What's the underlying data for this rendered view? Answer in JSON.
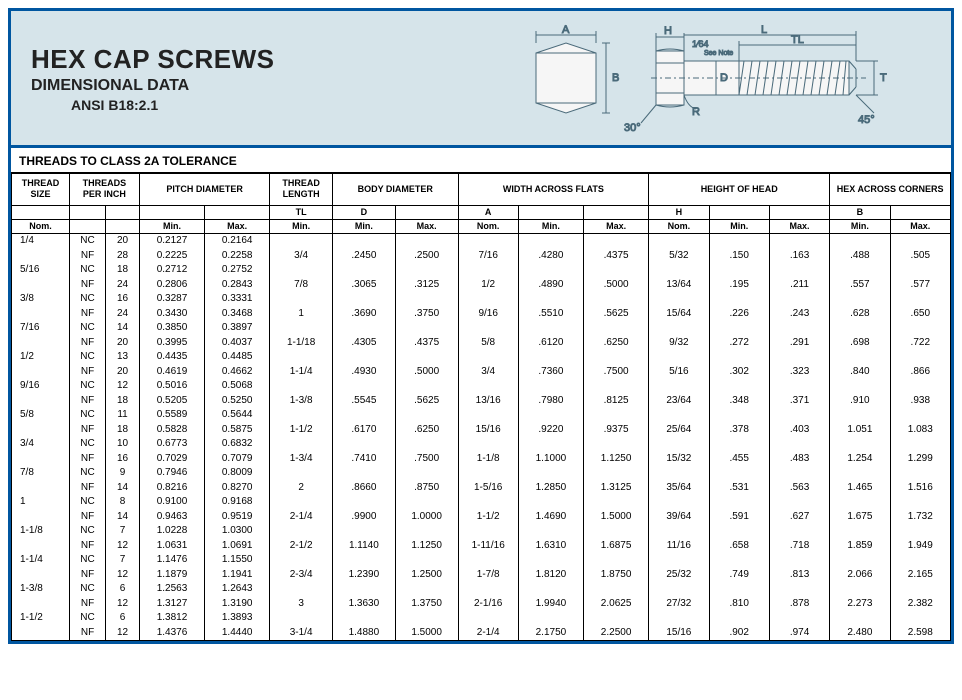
{
  "header": {
    "title1": "HEX CAP SCREWS",
    "title2": "DIMENSIONAL DATA",
    "title3": "ANSI B18:2.1"
  },
  "subtitle": "THREADS TO CLASS 2A TOLERANCE",
  "diagram": {
    "labels": {
      "A": "A",
      "B": "B",
      "H": "H",
      "L": "L",
      "TL": "TL",
      "D": "D",
      "R": "R",
      "T": "T",
      "angle30": "30°",
      "angle45": "45°",
      "frac": "1⁄64",
      "note": "See Note"
    },
    "stroke": "#4a6a7a"
  },
  "columns": {
    "groups": [
      {
        "label": "THREAD SIZE",
        "span": 1
      },
      {
        "label": "THREADS PER INCH",
        "span": 2
      },
      {
        "label": "PITCH DIAMETER",
        "span": 2
      },
      {
        "label": "THREAD LENGTH",
        "span": 1
      },
      {
        "label": "BODY DIAMETER",
        "span": 2
      },
      {
        "label": "WIDTH ACROSS FLATS",
        "span": 3
      },
      {
        "label": "HEIGHT OF HEAD",
        "span": 3
      },
      {
        "label": "HEX ACROSS CORNERS",
        "span": 2
      }
    ],
    "letters": [
      "",
      "",
      "",
      "",
      "",
      "TL",
      "D",
      "",
      "A",
      "",
      "",
      "H",
      "",
      "",
      "B",
      ""
    ],
    "sub": [
      "Nom.",
      "",
      "",
      "Min.",
      "Max.",
      "Min.",
      "Min.",
      "Max.",
      "Nom.",
      "Min.",
      "Max.",
      "Nom.",
      "Min.",
      "Max.",
      "Min.",
      "Max."
    ]
  },
  "rows": [
    {
      "size": "1/4",
      "t": "NC",
      "tpi": "20",
      "pmin": "0.2127",
      "pmax": "0.2164",
      "tl": "",
      "dmin": "",
      "dmax": "",
      "anom": "",
      "amin": "",
      "amax": "",
      "hnom": "",
      "hmin": "",
      "hmax": "",
      "bmin": "",
      "bmax": ""
    },
    {
      "size": "",
      "t": "NF",
      "tpi": "28",
      "pmin": "0.2225",
      "pmax": "0.2258",
      "tl": "3/4",
      "dmin": ".2450",
      "dmax": ".2500",
      "anom": "7/16",
      "amin": ".4280",
      "amax": ".4375",
      "hnom": "5/32",
      "hmin": ".150",
      "hmax": ".163",
      "bmin": ".488",
      "bmax": ".505"
    },
    {
      "size": "5/16",
      "t": "NC",
      "tpi": "18",
      "pmin": "0.2712",
      "pmax": "0.2752",
      "tl": "",
      "dmin": "",
      "dmax": "",
      "anom": "",
      "amin": "",
      "amax": "",
      "hnom": "",
      "hmin": "",
      "hmax": "",
      "bmin": "",
      "bmax": ""
    },
    {
      "size": "",
      "t": "NF",
      "tpi": "24",
      "pmin": "0.2806",
      "pmax": "0.2843",
      "tl": "7/8",
      "dmin": ".3065",
      "dmax": ".3125",
      "anom": "1/2",
      "amin": ".4890",
      "amax": ".5000",
      "hnom": "13/64",
      "hmin": ".195",
      "hmax": ".211",
      "bmin": ".557",
      "bmax": ".577"
    },
    {
      "size": "3/8",
      "t": "NC",
      "tpi": "16",
      "pmin": "0.3287",
      "pmax": "0.3331",
      "tl": "",
      "dmin": "",
      "dmax": "",
      "anom": "",
      "amin": "",
      "amax": "",
      "hnom": "",
      "hmin": "",
      "hmax": "",
      "bmin": "",
      "bmax": ""
    },
    {
      "size": "",
      "t": "NF",
      "tpi": "24",
      "pmin": "0.3430",
      "pmax": "0.3468",
      "tl": "1",
      "dmin": ".3690",
      "dmax": ".3750",
      "anom": "9/16",
      "amin": ".5510",
      "amax": ".5625",
      "hnom": "15/64",
      "hmin": ".226",
      "hmax": ".243",
      "bmin": ".628",
      "bmax": ".650"
    },
    {
      "size": "7/16",
      "t": "NC",
      "tpi": "14",
      "pmin": "0.3850",
      "pmax": "0.3897",
      "tl": "",
      "dmin": "",
      "dmax": "",
      "anom": "",
      "amin": "",
      "amax": "",
      "hnom": "",
      "hmin": "",
      "hmax": "",
      "bmin": "",
      "bmax": ""
    },
    {
      "size": "",
      "t": "NF",
      "tpi": "20",
      "pmin": "0.3995",
      "pmax": "0.4037",
      "tl": "1-1/18",
      "dmin": ".4305",
      "dmax": ".4375",
      "anom": "5/8",
      "amin": ".6120",
      "amax": ".6250",
      "hnom": "9/32",
      "hmin": ".272",
      "hmax": ".291",
      "bmin": ".698",
      "bmax": ".722"
    },
    {
      "size": "1/2",
      "t": "NC",
      "tpi": "13",
      "pmin": "0.4435",
      "pmax": "0.4485",
      "tl": "",
      "dmin": "",
      "dmax": "",
      "anom": "",
      "amin": "",
      "amax": "",
      "hnom": "",
      "hmin": "",
      "hmax": "",
      "bmin": "",
      "bmax": ""
    },
    {
      "size": "",
      "t": "NF",
      "tpi": "20",
      "pmin": "0.4619",
      "pmax": "0.4662",
      "tl": "1-1/4",
      "dmin": ".4930",
      "dmax": ".5000",
      "anom": "3/4",
      "amin": ".7360",
      "amax": ".7500",
      "hnom": "5/16",
      "hmin": ".302",
      "hmax": ".323",
      "bmin": ".840",
      "bmax": ".866"
    },
    {
      "size": "9/16",
      "t": "NC",
      "tpi": "12",
      "pmin": "0.5016",
      "pmax": "0.5068",
      "tl": "",
      "dmin": "",
      "dmax": "",
      "anom": "",
      "amin": "",
      "amax": "",
      "hnom": "",
      "hmin": "",
      "hmax": "",
      "bmin": "",
      "bmax": ""
    },
    {
      "size": "",
      "t": "NF",
      "tpi": "18",
      "pmin": "0.5205",
      "pmax": "0.5250",
      "tl": "1-3/8",
      "dmin": ".5545",
      "dmax": ".5625",
      "anom": "13/16",
      "amin": ".7980",
      "amax": ".8125",
      "hnom": "23/64",
      "hmin": ".348",
      "hmax": ".371",
      "bmin": ".910",
      "bmax": ".938"
    },
    {
      "size": "5/8",
      "t": "NC",
      "tpi": "11",
      "pmin": "0.5589",
      "pmax": "0.5644",
      "tl": "",
      "dmin": "",
      "dmax": "",
      "anom": "",
      "amin": "",
      "amax": "",
      "hnom": "",
      "hmin": "",
      "hmax": "",
      "bmin": "",
      "bmax": ""
    },
    {
      "size": "",
      "t": "NF",
      "tpi": "18",
      "pmin": "0.5828",
      "pmax": "0.5875",
      "tl": "1-1/2",
      "dmin": ".6170",
      "dmax": ".6250",
      "anom": "15/16",
      "amin": ".9220",
      "amax": ".9375",
      "hnom": "25/64",
      "hmin": ".378",
      "hmax": ".403",
      "bmin": "1.051",
      "bmax": "1.083"
    },
    {
      "size": "3/4",
      "t": "NC",
      "tpi": "10",
      "pmin": "0.6773",
      "pmax": "0.6832",
      "tl": "",
      "dmin": "",
      "dmax": "",
      "anom": "",
      "amin": "",
      "amax": "",
      "hnom": "",
      "hmin": "",
      "hmax": "",
      "bmin": "",
      "bmax": ""
    },
    {
      "size": "",
      "t": "NF",
      "tpi": "16",
      "pmin": "0.7029",
      "pmax": "0.7079",
      "tl": "1-3/4",
      "dmin": ".7410",
      "dmax": ".7500",
      "anom": "1-1/8",
      "amin": "1.1000",
      "amax": "1.1250",
      "hnom": "15/32",
      "hmin": ".455",
      "hmax": ".483",
      "bmin": "1.254",
      "bmax": "1.299"
    },
    {
      "size": "7/8",
      "t": "NC",
      "tpi": "9",
      "pmin": "0.7946",
      "pmax": "0.8009",
      "tl": "",
      "dmin": "",
      "dmax": "",
      "anom": "",
      "amin": "",
      "amax": "",
      "hnom": "",
      "hmin": "",
      "hmax": "",
      "bmin": "",
      "bmax": ""
    },
    {
      "size": "",
      "t": "NF",
      "tpi": "14",
      "pmin": "0.8216",
      "pmax": "0.8270",
      "tl": "2",
      "dmin": ".8660",
      "dmax": ".8750",
      "anom": "1-5/16",
      "amin": "1.2850",
      "amax": "1.3125",
      "hnom": "35/64",
      "hmin": ".531",
      "hmax": ".563",
      "bmin": "1.465",
      "bmax": "1.516"
    },
    {
      "size": "1",
      "t": "NC",
      "tpi": "8",
      "pmin": "0.9100",
      "pmax": "0.9168",
      "tl": "",
      "dmin": "",
      "dmax": "",
      "anom": "",
      "amin": "",
      "amax": "",
      "hnom": "",
      "hmin": "",
      "hmax": "",
      "bmin": "",
      "bmax": ""
    },
    {
      "size": "",
      "t": "NF",
      "tpi": "14",
      "pmin": "0.9463",
      "pmax": "0.9519",
      "tl": "2-1/4",
      "dmin": ".9900",
      "dmax": "1.0000",
      "anom": "1-1/2",
      "amin": "1.4690",
      "amax": "1.5000",
      "hnom": "39/64",
      "hmin": ".591",
      "hmax": ".627",
      "bmin": "1.675",
      "bmax": "1.732"
    },
    {
      "size": "1-1/8",
      "t": "NC",
      "tpi": "7",
      "pmin": "1.0228",
      "pmax": "1.0300",
      "tl": "",
      "dmin": "",
      "dmax": "",
      "anom": "",
      "amin": "",
      "amax": "",
      "hnom": "",
      "hmin": "",
      "hmax": "",
      "bmin": "",
      "bmax": ""
    },
    {
      "size": "",
      "t": "NF",
      "tpi": "12",
      "pmin": "1.0631",
      "pmax": "1.0691",
      "tl": "2-1/2",
      "dmin": "1.1140",
      "dmax": "1.1250",
      "anom": "1-11/16",
      "amin": "1.6310",
      "amax": "1.6875",
      "hnom": "11/16",
      "hmin": ".658",
      "hmax": ".718",
      "bmin": "1.859",
      "bmax": "1.949"
    },
    {
      "size": "1-1/4",
      "t": "NC",
      "tpi": "7",
      "pmin": "1.1476",
      "pmax": "1.1550",
      "tl": "",
      "dmin": "",
      "dmax": "",
      "anom": "",
      "amin": "",
      "amax": "",
      "hnom": "",
      "hmin": "",
      "hmax": "",
      "bmin": "",
      "bmax": ""
    },
    {
      "size": "",
      "t": "NF",
      "tpi": "12",
      "pmin": "1.1879",
      "pmax": "1.1941",
      "tl": "2-3/4",
      "dmin": "1.2390",
      "dmax": "1.2500",
      "anom": "1-7/8",
      "amin": "1.8120",
      "amax": "1.8750",
      "hnom": "25/32",
      "hmin": ".749",
      "hmax": ".813",
      "bmin": "2.066",
      "bmax": "2.165"
    },
    {
      "size": "1-3/8",
      "t": "NC",
      "tpi": "6",
      "pmin": "1.2563",
      "pmax": "1.2643",
      "tl": "",
      "dmin": "",
      "dmax": "",
      "anom": "",
      "amin": "",
      "amax": "",
      "hnom": "",
      "hmin": "",
      "hmax": "",
      "bmin": "",
      "bmax": ""
    },
    {
      "size": "",
      "t": "NF",
      "tpi": "12",
      "pmin": "1.3127",
      "pmax": "1.3190",
      "tl": "3",
      "dmin": "1.3630",
      "dmax": "1.3750",
      "anom": "2-1/16",
      "amin": "1.9940",
      "amax": "2.0625",
      "hnom": "27/32",
      "hmin": ".810",
      "hmax": ".878",
      "bmin": "2.273",
      "bmax": "2.382"
    },
    {
      "size": "1-1/2",
      "t": "NC",
      "tpi": "6",
      "pmin": "1.3812",
      "pmax": "1.3893",
      "tl": "",
      "dmin": "",
      "dmax": "",
      "anom": "",
      "amin": "",
      "amax": "",
      "hnom": "",
      "hmin": "",
      "hmax": "",
      "bmin": "",
      "bmax": ""
    },
    {
      "size": "",
      "t": "NF",
      "tpi": "12",
      "pmin": "1.4376",
      "pmax": "1.4440",
      "tl": "3-1/4",
      "dmin": "1.4880",
      "dmax": "1.5000",
      "anom": "2-1/4",
      "amin": "2.1750",
      "amax": "2.2500",
      "hnom": "15/16",
      "hmin": ".902",
      "hmax": ".974",
      "bmin": "2.480",
      "bmax": "2.598"
    }
  ]
}
